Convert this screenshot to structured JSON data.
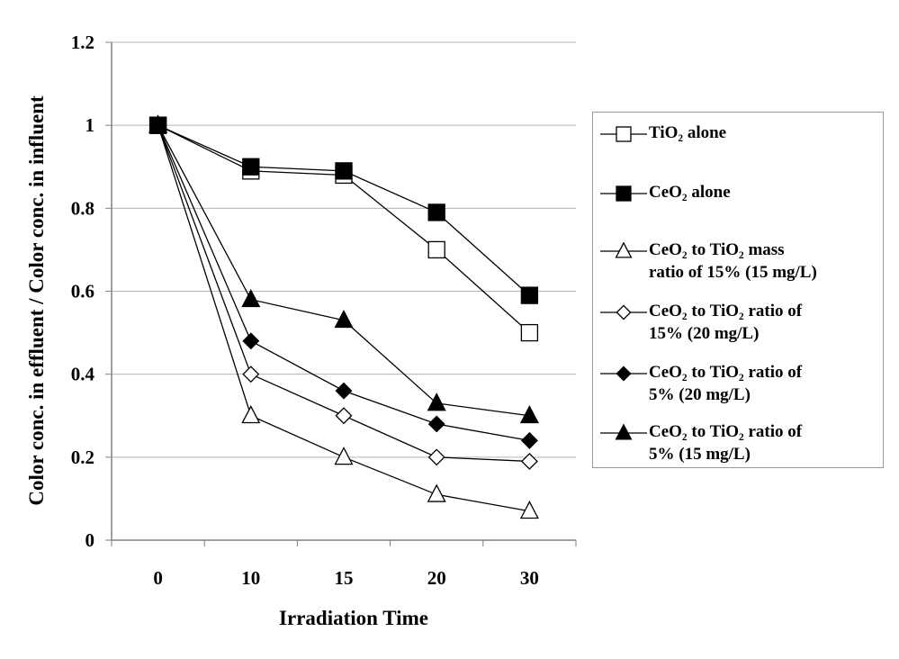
{
  "chart_data": {
    "type": "line",
    "xlabel": "Irradiation Time",
    "ylabel": "Color conc. in effluent / Color conc. in influent",
    "categories": [
      "0",
      "10",
      "15",
      "20",
      "30"
    ],
    "ylim": [
      0,
      1.2
    ],
    "yticks": [
      "0",
      "0.2",
      "0.4",
      "0.6",
      "0.8",
      "1",
      "1.2"
    ],
    "grid": "horizontal",
    "legend_position": "right",
    "series": [
      {
        "name": "TiO₂ alone",
        "name_lines": [
          "TiO₂ alone"
        ],
        "marker": "square-open",
        "values": [
          1.0,
          0.89,
          0.88,
          0.7,
          0.5
        ]
      },
      {
        "name": "CeO₂ alone",
        "name_lines": [
          "CeO₂ alone"
        ],
        "marker": "square-filled",
        "values": [
          1.0,
          0.9,
          0.89,
          0.79,
          0.59
        ]
      },
      {
        "name": "CeO₂ to TiO₂ mass ratio of 15% (15 mg/L)",
        "name_lines": [
          "CeO₂ to TiO₂ mass",
          "ratio of 15% (15 mg/L)"
        ],
        "marker": "triangle-open",
        "values": [
          1.0,
          0.3,
          0.2,
          0.11,
          0.07
        ]
      },
      {
        "name": "CeO₂ to TiO₂ ratio of 15% (20 mg/L)",
        "name_lines": [
          "CeO₂ to TiO₂ ratio of",
          "15% (20 mg/L)"
        ],
        "marker": "diamond-open",
        "values": [
          1.0,
          0.4,
          0.3,
          0.2,
          0.19
        ]
      },
      {
        "name": "CeO₂ to TiO₂ ratio of 5% (20 mg/L)",
        "name_lines": [
          "CeO₂ to TiO₂ ratio of",
          "5% (20 mg/L)"
        ],
        "marker": "diamond-filled",
        "values": [
          1.0,
          0.48,
          0.36,
          0.28,
          0.24
        ]
      },
      {
        "name": "CeO₂ to TiO₂ ratio of 5% (15 mg/L)",
        "name_lines": [
          "CeO₂ to TiO₂ ratio of",
          "5% (15 mg/L)"
        ],
        "marker": "triangle-filled",
        "values": [
          1.0,
          0.58,
          0.53,
          0.33,
          0.3
        ]
      }
    ]
  }
}
